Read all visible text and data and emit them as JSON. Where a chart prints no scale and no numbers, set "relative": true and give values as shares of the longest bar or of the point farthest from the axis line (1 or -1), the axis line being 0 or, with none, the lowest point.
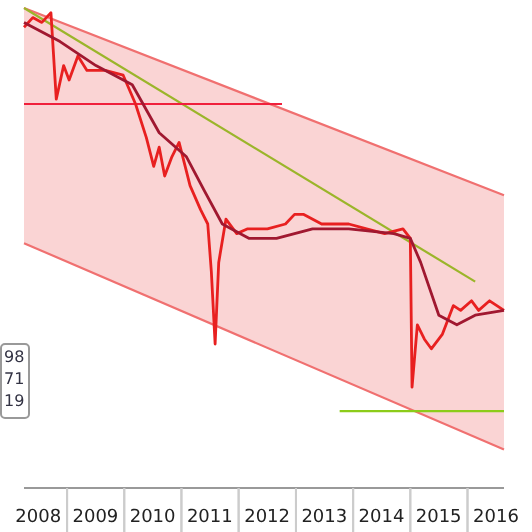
{
  "chart_data": {
    "type": "line",
    "relative": true,
    "xlim": [
      "2008-04-01",
      "2016-08-21"
    ],
    "xticks": [
      {
        "value": "2008-07-01",
        "label": "2008"
      },
      {
        "value": "2009-07-01",
        "label": "2009"
      },
      {
        "value": "2010-07-01",
        "label": "2010"
      },
      {
        "value": "2011-07-01",
        "label": "2011"
      },
      {
        "value": "2012-07-01",
        "label": "2012"
      },
      {
        "value": "2013-07-01",
        "label": "2013"
      },
      {
        "value": "2014-07-01",
        "label": "2014"
      },
      {
        "value": "2015-07-01",
        "label": "2015"
      },
      {
        "value": "2016-07-01",
        "label": "2016"
      }
    ],
    "annotations": [
      "98",
      "71",
      "19"
    ],
    "series": [
      {
        "color": "#f4a0a0",
        "x": [
          "2008-04-01",
          "2016-08-21"
        ],
        "values": [
          null,
          null
        ],
        "lower": [
          0.51,
          0.08
        ],
        "upper": [
          1.0,
          0.61
        ]
      },
      {
        "color": "#f07070",
        "x": [
          "2008-04-01",
          "2016-08-21"
        ],
        "values": [
          1.0,
          0.61
        ]
      },
      {
        "color": "#f07070",
        "x": [
          "2008-04-01",
          "2016-08-21"
        ],
        "values": [
          0.51,
          0.08
        ]
      },
      {
        "color": "#9bb52a",
        "x": [
          "2008-04-01",
          "2016-02-19"
        ],
        "values": [
          1.0,
          0.43
        ]
      },
      {
        "color": "#f0203c",
        "x": [
          "2008-04-01",
          "2012-10-04"
        ],
        "values": [
          0.8,
          0.8
        ]
      },
      {
        "color": "#8ccc1a",
        "x": [
          "2013-10-07",
          "2016-08-21"
        ],
        "values": [
          0.16,
          0.16
        ]
      },
      {
        "color": "#e82020",
        "x": [
          "2008-04-01",
          "2008-05-27",
          "2008-07-24",
          "2008-09-20",
          "2008-10-24",
          "2008-12-10",
          "2009-01-14",
          "2009-03-11",
          "2009-05-08",
          "2009-09-01",
          "2009-12-25",
          "2010-03-14",
          "2010-05-22",
          "2010-07-08",
          "2010-08-12",
          "2010-09-16",
          "2010-11-01",
          "2010-12-17",
          "2011-02-25",
          "2011-05-03",
          "2011-06-18",
          "2011-07-11",
          "2011-08-04",
          "2011-08-27",
          "2011-10-12",
          "2011-12-20",
          "2012-02-28",
          "2012-07-03",
          "2012-10-26",
          "2012-12-23",
          "2013-02-20",
          "2013-06-14",
          "2013-12-04",
          "2014-03-28",
          "2014-07-21",
          "2014-11-15",
          "2015-01-01",
          "2015-01-12",
          "2015-02-15",
          "2015-04-01",
          "2015-05-15",
          "2015-07-24",
          "2015-09-09",
          "2015-10-03",
          "2015-11-18",
          "2016-01-27",
          "2016-03-12",
          "2016-05-21",
          "2016-08-21"
        ],
        "values": [
          0.96,
          0.98,
          0.97,
          0.99,
          0.81,
          0.88,
          0.85,
          0.9,
          0.87,
          0.87,
          0.86,
          0.8,
          0.73,
          0.67,
          0.71,
          0.65,
          0.69,
          0.72,
          0.63,
          0.58,
          0.55,
          0.45,
          0.3,
          0.47,
          0.56,
          0.53,
          0.54,
          0.54,
          0.55,
          0.57,
          0.57,
          0.55,
          0.55,
          0.54,
          0.53,
          0.54,
          0.52,
          0.21,
          0.34,
          0.31,
          0.29,
          0.32,
          0.36,
          0.38,
          0.37,
          0.39,
          0.37,
          0.39,
          0.37
        ]
      },
      {
        "color": "#a01830",
        "x": [
          "2008-04-01",
          "2008-11-17",
          "2009-07-04",
          "2010-02-21",
          "2010-08-12",
          "2011-02-02",
          "2011-05-26",
          "2011-09-19",
          "2012-03-09",
          "2012-08-30",
          "2013-04-17",
          "2013-12-04",
          "2014-09-18",
          "2015-01-01",
          "2015-03-08",
          "2015-07-02",
          "2015-10-25",
          "2016-02-19",
          "2016-08-21"
        ],
        "values": [
          0.97,
          0.93,
          0.88,
          0.84,
          0.74,
          0.69,
          0.62,
          0.55,
          0.52,
          0.52,
          0.54,
          0.54,
          0.53,
          0.52,
          0.47,
          0.36,
          0.34,
          0.36,
          0.37
        ]
      }
    ]
  }
}
